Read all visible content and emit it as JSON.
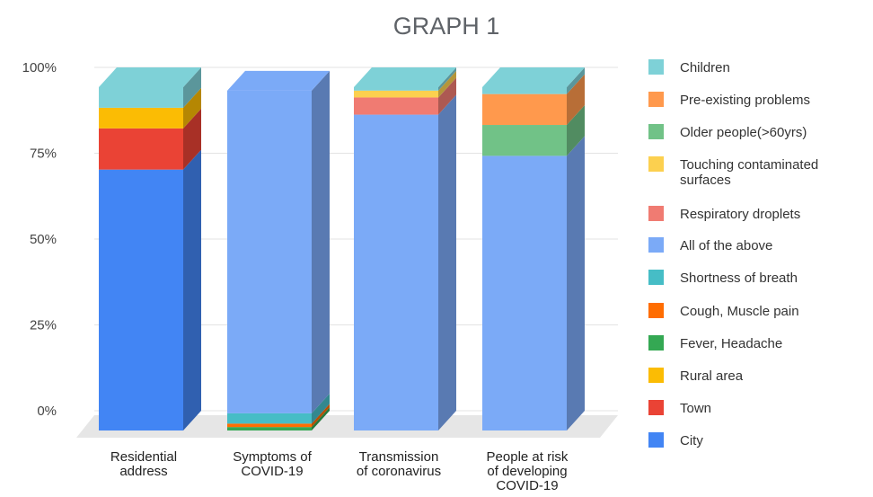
{
  "chart_data": {
    "type": "bar",
    "stacked": true,
    "three_d": true,
    "title": "GRAPH 1",
    "xlabel": "",
    "ylabel": "",
    "ylim": [
      0,
      100
    ],
    "yticks": [
      "0%",
      "25%",
      "50%",
      "75%",
      "100%"
    ],
    "categories": [
      [
        "Residential",
        "address"
      ],
      [
        "Symptoms of",
        "COVID-19"
      ],
      [
        "Transmission",
        "of coronavirus"
      ],
      [
        "People at risk",
        "of developing",
        "COVID-19"
      ]
    ],
    "series": [
      {
        "name": "City",
        "color": "#4285f4",
        "values": [
          76,
          0,
          0,
          0
        ]
      },
      {
        "name": "Town",
        "color": "#ea4335",
        "values": [
          12,
          0,
          0,
          0
        ]
      },
      {
        "name": "Rural area",
        "color": "#fbbc04",
        "values": [
          6,
          0,
          0,
          0
        ]
      },
      {
        "name": "Fever, Headache",
        "color": "#34a853",
        "values": [
          0,
          1,
          0,
          0
        ]
      },
      {
        "name": "Cough, Muscle pain",
        "color": "#ff6d01",
        "values": [
          0,
          1,
          0,
          0
        ]
      },
      {
        "name": "Shortness of breath",
        "color": "#46bdc6",
        "values": [
          0,
          3,
          0,
          0
        ]
      },
      {
        "name": "All of the above",
        "color": "#7baaf7",
        "values": [
          0,
          94,
          92,
          80
        ]
      },
      {
        "name": "Respiratory droplets",
        "color": "#f07b72",
        "values": [
          0,
          0,
          5,
          0
        ]
      },
      {
        "name": "Touching contaminated surfaces",
        "color": "#fcd04f",
        "values": [
          0,
          0,
          2,
          0
        ]
      },
      {
        "name": "Older people(>60yrs)",
        "color": "#71c287",
        "values": [
          0,
          0,
          0,
          9
        ]
      },
      {
        "name": "Pre-existing problems",
        "color": "#ff994d",
        "values": [
          0,
          0,
          0,
          9
        ]
      },
      {
        "name": "Children",
        "color": "#7ed1d7",
        "values": [
          6,
          0,
          1,
          2
        ]
      }
    ],
    "legend": {
      "position": "right",
      "order": [
        "Children",
        "Pre-existing problems",
        "Older people(>60yrs)",
        "Touching contaminated surfaces",
        "Respiratory droplets",
        "All of the above",
        "Shortness of breath",
        "Cough, Muscle pain",
        "Fever, Headache",
        "Rural area",
        "Town",
        "City"
      ]
    },
    "grid": true
  }
}
